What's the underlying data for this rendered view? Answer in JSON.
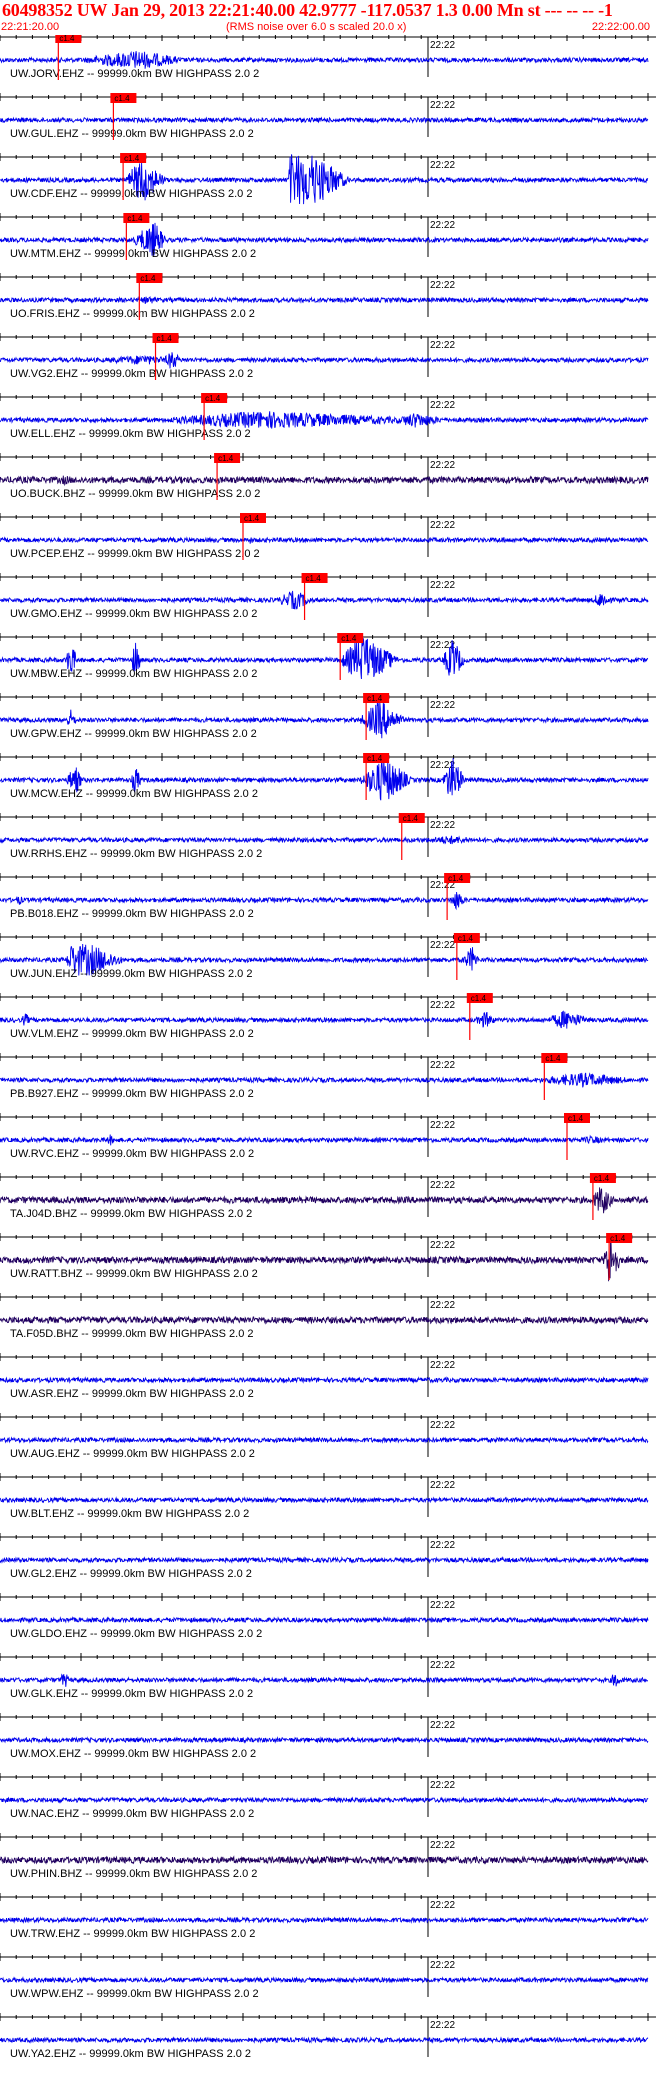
{
  "header": {
    "title": "60498352 UW Jan 29, 2013 22:21:40.00   42.9777 -117.0537  1.3 0.00 Mn st --- -- --  -1",
    "start_time": "22:21:20.00",
    "subtitle": "(RMS noise over 6.0 s scaled 20.0 x)",
    "end_time": "22:22:00.00"
  },
  "colors": {
    "trace": "#0000ee",
    "trace_dark": "#200060",
    "pick": "#ff0000",
    "text": "#000000",
    "header": "#ff0000"
  },
  "chart_data": {
    "type": "seismogram",
    "x_axis": {
      "start": "22:21:20.00",
      "end": "22:22:00.00",
      "marker_label": "22:22"
    },
    "pick_label": "c1.4",
    "traces": [
      {
        "label": "UW.JORV.EHZ -- 99999.0km BW  HIGHPASS  2.0  2",
        "pick": 0.09,
        "dark": false,
        "bursts": [
          [
            0.1,
            0.3,
            14,
            0.16
          ]
        ]
      },
      {
        "label": "UW.GUL.EHZ -- 99999.0km BW  HIGHPASS  2.0  2",
        "pick": 0.175,
        "dark": false,
        "bursts": []
      },
      {
        "label": "UW.CDF.EHZ -- 99999.0km BW  HIGHPASS  2.0  2",
        "pick": 0.19,
        "dark": false,
        "bursts": [
          [
            0.19,
            0.26,
            24,
            0.03
          ],
          [
            0.445,
            0.545,
            26,
            0.002
          ]
        ]
      },
      {
        "label": "UW.MTM.EHZ -- 99999.0km BW  HIGHPASS  2.0  2",
        "pick": 0.195,
        "dark": false,
        "bursts": [
          [
            0.2,
            0.26,
            30,
            0.06
          ]
        ]
      },
      {
        "label": "UO.FRIS.EHZ -- 99999.0km BW  HIGHPASS  2.0  2",
        "pick": 0.215,
        "dark": false,
        "bursts": [
          [
            0.2,
            0.25,
            7,
            0.05
          ],
          [
            0.65,
            0.66,
            4,
            0.01
          ]
        ]
      },
      {
        "label": "UW.VG2.EHZ -- 99999.0km BW  HIGHPASS  2.0  2",
        "pick": 0.24,
        "dark": false,
        "bursts": [
          [
            0.12,
            0.3,
            7,
            0.14
          ],
          [
            0.25,
            0.28,
            14,
            0.02
          ]
        ]
      },
      {
        "label": "UW.ELL.EHZ -- 99999.0km BW  HIGHPASS  2.0  2",
        "pick": 0.315,
        "dark": false,
        "bursts": [
          [
            0.2,
            0.72,
            9,
            0.2
          ],
          [
            0.6,
            0.7,
            8,
            0.04
          ]
        ]
      },
      {
        "label": "UO.BUCK.BHZ -- 99999.0km BW  HIGHPASS  2.0  2",
        "pick": 0.335,
        "dark": true,
        "bursts": [
          [
            0.08,
            0.13,
            5,
            0.02
          ]
        ]
      },
      {
        "label": "UW.PCEP.EHZ -- 99999.0km BW  HIGHPASS  2.0  2",
        "pick": 0.375,
        "dark": false,
        "bursts": [
          [
            0.37,
            0.4,
            5,
            0.02
          ],
          [
            0.75,
            0.8,
            4,
            0.03
          ]
        ]
      },
      {
        "label": "UW.GMO.EHZ -- 99999.0km BW  HIGHPASS  2.0  2",
        "pick": 0.47,
        "dark": false,
        "bursts": [
          [
            0.42,
            0.49,
            12,
            0.04
          ],
          [
            0.91,
            0.95,
            10,
            0.02
          ]
        ]
      },
      {
        "label": "UW.MBW.EHZ -- 99999.0km BW  HIGHPASS  2.0  2",
        "pick": 0.525,
        "dark": false,
        "bursts": [
          [
            0.1,
            0.12,
            22,
            0.01
          ],
          [
            0.2,
            0.22,
            20,
            0.01
          ],
          [
            0.52,
            0.62,
            26,
            0.04
          ],
          [
            0.68,
            0.72,
            24,
            0.02
          ]
        ]
      },
      {
        "label": "UW.GPW.EHZ -- 99999.0km BW  HIGHPASS  2.0  2",
        "pick": 0.565,
        "dark": false,
        "bursts": [
          [
            0.1,
            0.12,
            12,
            0.01
          ],
          [
            0.55,
            0.63,
            22,
            0.04
          ]
        ]
      },
      {
        "label": "UW.MCW.EHZ -- 99999.0km BW  HIGHPASS  2.0  2",
        "pick": 0.565,
        "dark": false,
        "bursts": [
          [
            0.1,
            0.13,
            20,
            0.02
          ],
          [
            0.2,
            0.22,
            16,
            0.01
          ],
          [
            0.55,
            0.64,
            28,
            0.05
          ],
          [
            0.68,
            0.72,
            26,
            0.02
          ]
        ]
      },
      {
        "label": "UW.RRHS.EHZ -- 99999.0km BW  HIGHPASS  2.0  2",
        "pick": 0.62,
        "dark": false,
        "bursts": [
          [
            0.62,
            0.76,
            6,
            0.1
          ]
        ]
      },
      {
        "label": "PB.B018.EHZ -- 99999.0km BW  HIGHPASS  2.0  2",
        "pick": 0.69,
        "dark": false,
        "bursts": [
          [
            0.02,
            0.04,
            6,
            0.01
          ],
          [
            0.69,
            0.72,
            14,
            0.02
          ]
        ]
      },
      {
        "label": "UW.JUN.EHZ -- 99999.0km BW  HIGHPASS  2.0  2",
        "pick": 0.705,
        "dark": false,
        "bursts": [
          [
            0.1,
            0.2,
            16,
            0.01
          ],
          [
            0.71,
            0.74,
            22,
            0.03
          ]
        ]
      },
      {
        "label": "UW.VLM.EHZ -- 99999.0km BW  HIGHPASS  2.0  2",
        "pick": 0.725,
        "dark": false,
        "bursts": [
          [
            0.03,
            0.05,
            8,
            0.01
          ],
          [
            0.73,
            0.77,
            10,
            0.02
          ],
          [
            0.84,
            0.92,
            10,
            0.03
          ]
        ]
      },
      {
        "label": "PB.B927.EHZ -- 99999.0km BW  HIGHPASS  2.0  2",
        "pick": 0.84,
        "dark": false,
        "bursts": [
          [
            0.8,
            1.0,
            9,
            0.12
          ]
        ]
      },
      {
        "label": "UW.RVC.EHZ -- 99999.0km BW  HIGHPASS  2.0  2",
        "pick": 0.875,
        "dark": false,
        "bursts": [
          [
            0.16,
            0.18,
            7,
            0.01
          ],
          [
            0.88,
            0.95,
            5,
            0.04
          ]
        ]
      },
      {
        "label": "TA.J04D.BHZ -- 99999.0km BW  HIGHPASS  2.0  2",
        "pick": 0.915,
        "dark": true,
        "bursts": [
          [
            0.91,
            0.95,
            18,
            0.02
          ]
        ]
      },
      {
        "label": "UW.RATT.BHZ -- 99999.0km BW  HIGHPASS  2.0  2",
        "pick": 0.94,
        "dark": true,
        "bursts": [
          [
            0.93,
            0.96,
            28,
            0.01
          ]
        ]
      },
      {
        "label": "TA.F05D.BHZ -- 99999.0km BW  HIGHPASS  2.0  2",
        "pick": null,
        "dark": true,
        "bursts": [
          [
            0.28,
            0.55,
            4,
            0.15
          ]
        ]
      },
      {
        "label": "UW.ASR.EHZ -- 99999.0km BW  HIGHPASS  2.0  2",
        "pick": null,
        "dark": false,
        "bursts": []
      },
      {
        "label": "UW.AUG.EHZ -- 99999.0km BW  HIGHPASS  2.0  2",
        "pick": null,
        "dark": false,
        "bursts": []
      },
      {
        "label": "UW.BLT.EHZ -- 99999.0km BW  HIGHPASS  2.0  2",
        "pick": null,
        "dark": false,
        "bursts": []
      },
      {
        "label": "UW.GL2.EHZ -- 99999.0km BW  HIGHPASS  2.0  2",
        "pick": null,
        "dark": false,
        "bursts": []
      },
      {
        "label": "UW.GLDO.EHZ -- 99999.0km BW  HIGHPASS  2.0  2",
        "pick": null,
        "dark": false,
        "bursts": []
      },
      {
        "label": "UW.GLK.EHZ -- 99999.0km BW  HIGHPASS  2.0  2",
        "pick": null,
        "dark": false,
        "bursts": [
          [
            0.09,
            0.11,
            10,
            0.01
          ],
          [
            0.94,
            0.96,
            10,
            0.01
          ]
        ]
      },
      {
        "label": "UW.MOX.EHZ -- 99999.0km BW  HIGHPASS  2.0  2",
        "pick": null,
        "dark": false,
        "bursts": []
      },
      {
        "label": "UW.NAC.EHZ -- 99999.0km BW  HIGHPASS  2.0  2",
        "pick": null,
        "dark": false,
        "bursts": []
      },
      {
        "label": "UW.PHIN.BHZ -- 99999.0km BW  HIGHPASS  2.0  2",
        "pick": null,
        "dark": true,
        "bursts": []
      },
      {
        "label": "UW.TRW.EHZ -- 99999.0km BW  HIGHPASS  2.0  2",
        "pick": null,
        "dark": false,
        "bursts": []
      },
      {
        "label": "UW.WPW.EHZ -- 99999.0km BW  HIGHPASS  2.0  2",
        "pick": null,
        "dark": false,
        "bursts": []
      },
      {
        "label": "UW.YA2.EHZ -- 99999.0km BW  HIGHPASS  2.0  2",
        "pick": null,
        "dark": false,
        "bursts": []
      }
    ]
  }
}
